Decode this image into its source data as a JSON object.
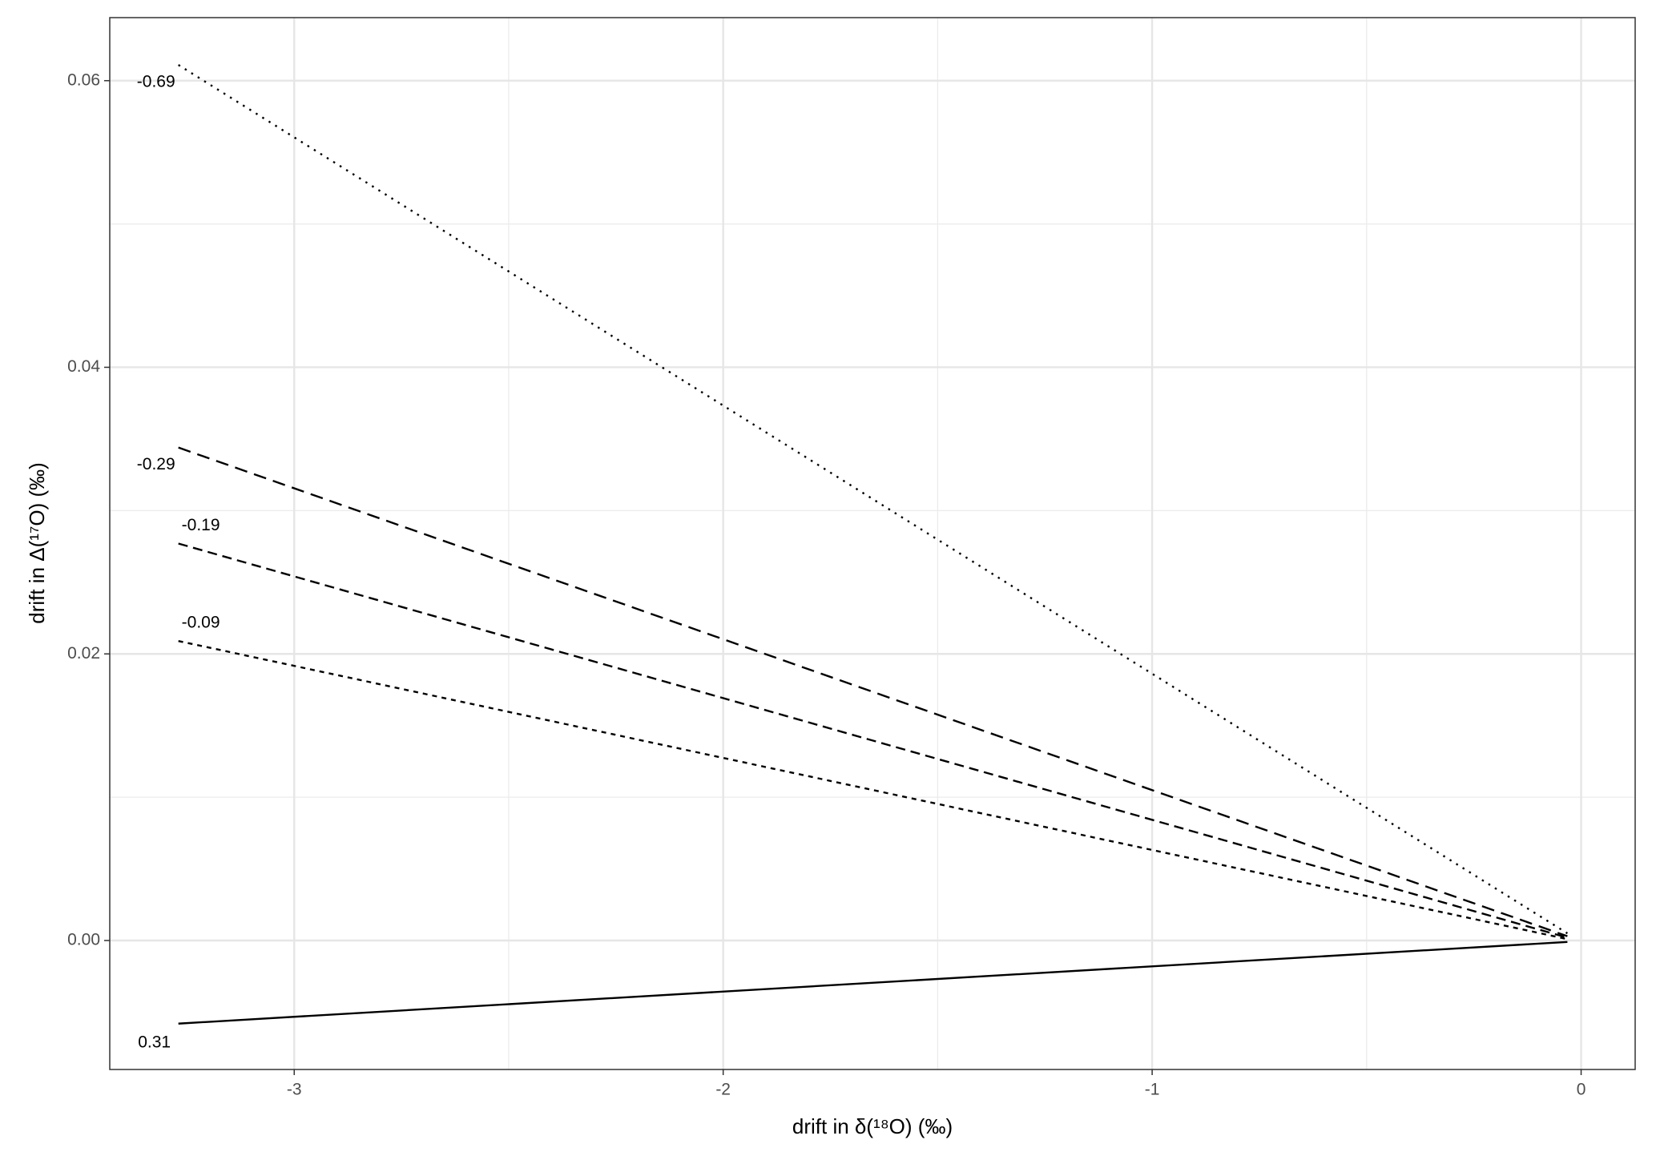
{
  "chart_data": {
    "type": "line",
    "x_label": "drift in δ(¹⁸O) (‰)",
    "y_label": "drift in Δ(¹⁷O) (‰)",
    "x": [
      -3.27,
      -0.032
    ],
    "series": [
      {
        "name": "-0.69",
        "color": "#000000",
        "linestyle": "dotted",
        "values": [
          0.0611,
          0.0005
        ]
      },
      {
        "name": "-0.29",
        "color": "#000000",
        "linestyle": "dashed",
        "values": [
          0.0344,
          0.0003
        ]
      },
      {
        "name": "-0.19",
        "color": "#000000",
        "linestyle": "longdash",
        "values": [
          0.0277,
          0.0002
        ]
      },
      {
        "name": "-0.09",
        "color": "#000000",
        "linestyle": "shortdash",
        "values": [
          0.0209,
          0.0001
        ]
      },
      {
        "name": "0.31",
        "color": "#000000",
        "linestyle": "solid",
        "values": [
          -0.0058,
          -0.0001
        ]
      }
    ],
    "xlim": [
      -3.43,
      0.126
    ],
    "ylim": [
      -0.009,
      0.0644
    ],
    "xticks": [
      -3,
      -2,
      -1,
      0
    ],
    "yticks": [
      {
        "value": 0,
        "label": "0.00"
      },
      {
        "value": 0.02,
        "label": "0.02"
      },
      {
        "value": 0.04,
        "label": "0.04"
      },
      {
        "value": 0.06,
        "label": "0.06"
      }
    ],
    "grid": true
  }
}
